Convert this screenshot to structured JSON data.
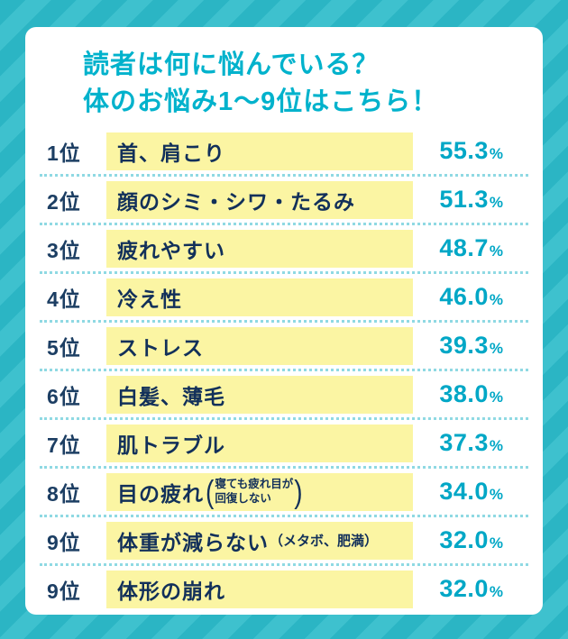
{
  "colors": {
    "background": "#2bb5c4",
    "stripe": "#3ec1ce",
    "card": "#ffffff",
    "title": "#00b2cc",
    "rank": "#1c3e63",
    "item": "#12305a",
    "highlight": "#fbf5a3",
    "percent": "#00a7c6",
    "divider": "#8fd9e3"
  },
  "title": {
    "line1": "読者は何に悩んでいる？",
    "line2": "体のお悩み1～9位はこちら！"
  },
  "symbols": {
    "percent": "%",
    "paren_open": "(",
    "paren_close": ")"
  },
  "chart_data": {
    "type": "table",
    "title": "読者は何に悩んでいる？ 体のお悩み1～9位はこちら！",
    "value_unit": "%",
    "value_range": [
      0,
      100
    ],
    "rows": [
      {
        "rank": "1位",
        "label": "首、肩こり",
        "value": 55.3,
        "percent": "55.3"
      },
      {
        "rank": "2位",
        "label": "顔のシミ・シワ・たるみ",
        "value": 51.3,
        "percent": "51.3"
      },
      {
        "rank": "3位",
        "label": "疲れやすい",
        "value": 48.7,
        "percent": "48.7"
      },
      {
        "rank": "4位",
        "label": "冷え性",
        "value": 46.0,
        "percent": "46.0"
      },
      {
        "rank": "5位",
        "label": "ストレス",
        "value": 39.3,
        "percent": "39.3"
      },
      {
        "rank": "6位",
        "label": "白髪、薄毛",
        "value": 38.0,
        "percent": "38.0"
      },
      {
        "rank": "7位",
        "label": "肌トラブル",
        "value": 37.3,
        "percent": "37.3"
      },
      {
        "rank": "8位",
        "label": "目の疲れ",
        "note_line1": "寝ても疲れ目が",
        "note_line2": "回復しない",
        "value": 34.0,
        "percent": "34.0"
      },
      {
        "rank": "9位",
        "label": "体重が減らない",
        "note": "（メタボ、肥満）",
        "value": 32.0,
        "percent": "32.0"
      },
      {
        "rank": "9位",
        "label": "体形の崩れ",
        "value": 32.0,
        "percent": "32.0"
      }
    ]
  }
}
